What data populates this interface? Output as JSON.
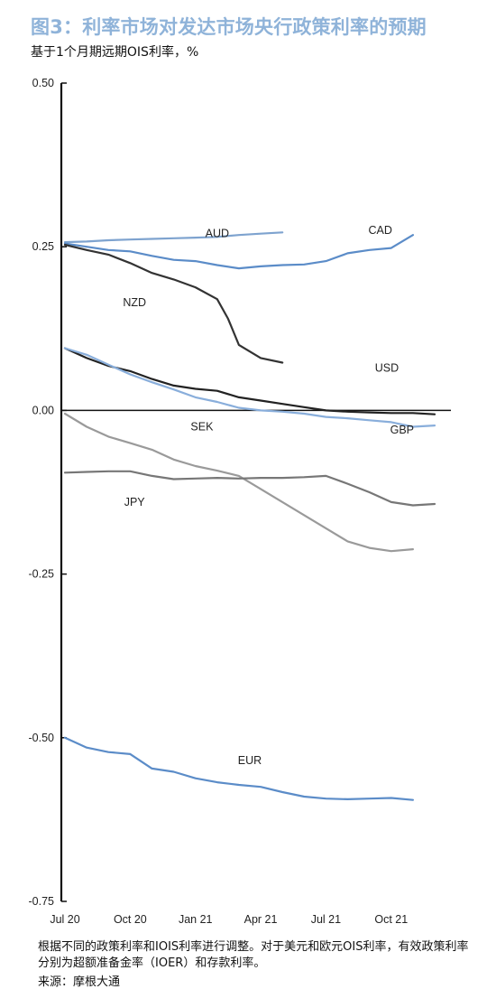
{
  "title": "图3：利率市场对发达市场央行政策利率的预期",
  "subtitle": "基于1个月期远期OIS利率，%",
  "footnote": "根据不同的政策利率和IOIS利率进行调整。对于美元和欧元OIS利率，有效政策利率分别为超额准备金率（IOER）和存款利率。",
  "source": "来源：摩根大通",
  "chart_data": {
    "type": "line",
    "x_categories": [
      "Jul 20",
      "Oct 20",
      "Jan 21",
      "Apr 21",
      "Jul 21",
      "Oct 21"
    ],
    "y_ticks": [
      "0.50",
      "0.25",
      "0.00",
      "-0.25",
      "-0.50",
      "-0.75"
    ],
    "ylim": [
      -0.75,
      0.5
    ],
    "xlim": [
      0,
      17
    ],
    "grid": false,
    "series": [
      {
        "name": "AUD",
        "color": "#7ea3cf",
        "label_at": [
          7,
          0.27
        ],
        "points": [
          [
            0,
            0.257
          ],
          [
            1,
            0.258
          ],
          [
            2,
            0.26
          ],
          [
            3,
            0.261
          ],
          [
            4,
            0.262
          ],
          [
            5,
            0.263
          ],
          [
            6,
            0.264
          ],
          [
            7,
            0.265
          ],
          [
            8,
            0.268
          ],
          [
            9,
            0.27
          ],
          [
            10,
            0.272
          ]
        ]
      },
      {
        "name": "CAD",
        "color": "#5b8cc8",
        "label_at": [
          14.5,
          0.275
        ],
        "points": [
          [
            0,
            0.255
          ],
          [
            1,
            0.25
          ],
          [
            2,
            0.245
          ],
          [
            3,
            0.243
          ],
          [
            4,
            0.236
          ],
          [
            5,
            0.23
          ],
          [
            6,
            0.228
          ],
          [
            7,
            0.222
          ],
          [
            8,
            0.217
          ],
          [
            9,
            0.22
          ],
          [
            10,
            0.222
          ],
          [
            11,
            0.223
          ],
          [
            12,
            0.228
          ],
          [
            13,
            0.24
          ],
          [
            14,
            0.245
          ],
          [
            15,
            0.248
          ],
          [
            16,
            0.268
          ]
        ]
      },
      {
        "name": "NZD",
        "color": "#333333",
        "label_at": [
          3.2,
          0.165
        ],
        "points": [
          [
            0,
            0.253
          ],
          [
            1,
            0.245
          ],
          [
            2,
            0.238
          ],
          [
            3,
            0.225
          ],
          [
            4,
            0.21
          ],
          [
            5,
            0.2
          ],
          [
            6,
            0.188
          ],
          [
            7,
            0.17
          ],
          [
            7.5,
            0.14
          ],
          [
            8,
            0.1
          ],
          [
            9,
            0.08
          ],
          [
            10,
            0.073
          ]
        ]
      },
      {
        "name": "USD",
        "color": "#222222",
        "label_at": [
          14.8,
          0.065
        ],
        "points": [
          [
            0,
            0.095
          ],
          [
            1,
            0.08
          ],
          [
            2,
            0.068
          ],
          [
            3,
            0.06
          ],
          [
            4,
            0.048
          ],
          [
            5,
            0.038
          ],
          [
            6,
            0.033
          ],
          [
            7,
            0.03
          ],
          [
            8,
            0.02
          ],
          [
            9,
            0.015
          ],
          [
            10,
            0.01
          ],
          [
            11,
            0.005
          ],
          [
            12,
            0.0
          ],
          [
            13,
            -0.002
          ],
          [
            14,
            -0.003
          ],
          [
            15,
            -0.004
          ],
          [
            16,
            -0.004
          ],
          [
            17,
            -0.006
          ]
        ]
      },
      {
        "name": "GBP",
        "color": "#89aedb",
        "label_at": [
          15.5,
          -0.03
        ],
        "points": [
          [
            0,
            0.095
          ],
          [
            1,
            0.085
          ],
          [
            2,
            0.07
          ],
          [
            3,
            0.055
          ],
          [
            4,
            0.043
          ],
          [
            5,
            0.032
          ],
          [
            6,
            0.02
          ],
          [
            7,
            0.013
          ],
          [
            8,
            0.004
          ],
          [
            9,
            0.0
          ],
          [
            10,
            -0.002
          ],
          [
            11,
            -0.005
          ],
          [
            12,
            -0.01
          ],
          [
            13,
            -0.012
          ],
          [
            14,
            -0.015
          ],
          [
            15,
            -0.018
          ],
          [
            16,
            -0.025
          ],
          [
            17,
            -0.023
          ]
        ]
      },
      {
        "name": "SEK",
        "color": "#9a9a9a",
        "label_at": [
          6.3,
          -0.025
        ],
        "points": [
          [
            0,
            -0.005
          ],
          [
            1,
            -0.025
          ],
          [
            2,
            -0.04
          ],
          [
            3,
            -0.05
          ],
          [
            4,
            -0.06
          ],
          [
            5,
            -0.075
          ],
          [
            6,
            -0.085
          ],
          [
            7,
            -0.092
          ],
          [
            8,
            -0.1
          ],
          [
            9,
            -0.12
          ],
          [
            10,
            -0.14
          ],
          [
            11,
            -0.16
          ],
          [
            12,
            -0.18
          ],
          [
            13,
            -0.2
          ],
          [
            14,
            -0.21
          ],
          [
            15,
            -0.215
          ],
          [
            16,
            -0.212
          ]
        ]
      },
      {
        "name": "JPY",
        "color": "#777777",
        "label_at": [
          3.2,
          -0.14
        ],
        "points": [
          [
            0,
            -0.095
          ],
          [
            1,
            -0.094
          ],
          [
            2,
            -0.093
          ],
          [
            3,
            -0.093
          ],
          [
            4,
            -0.1
          ],
          [
            5,
            -0.105
          ],
          [
            6,
            -0.104
          ],
          [
            7,
            -0.103
          ],
          [
            8,
            -0.104
          ],
          [
            9,
            -0.103
          ],
          [
            10,
            -0.103
          ],
          [
            11,
            -0.102
          ],
          [
            12,
            -0.1
          ],
          [
            13,
            -0.112
          ],
          [
            14,
            -0.125
          ],
          [
            15,
            -0.14
          ],
          [
            16,
            -0.145
          ],
          [
            17,
            -0.143
          ]
        ]
      },
      {
        "name": "EUR",
        "color": "#5b8cc8",
        "label_at": [
          8.5,
          -0.535
        ],
        "points": [
          [
            0,
            -0.5
          ],
          [
            1,
            -0.515
          ],
          [
            2,
            -0.522
          ],
          [
            3,
            -0.525
          ],
          [
            4,
            -0.547
          ],
          [
            5,
            -0.552
          ],
          [
            6,
            -0.562
          ],
          [
            7,
            -0.568
          ],
          [
            8,
            -0.572
          ],
          [
            9,
            -0.575
          ],
          [
            10,
            -0.583
          ],
          [
            11,
            -0.59
          ],
          [
            12,
            -0.593
          ],
          [
            13,
            -0.594
          ],
          [
            14,
            -0.593
          ],
          [
            15,
            -0.592
          ],
          [
            16,
            -0.595
          ]
        ]
      }
    ]
  }
}
